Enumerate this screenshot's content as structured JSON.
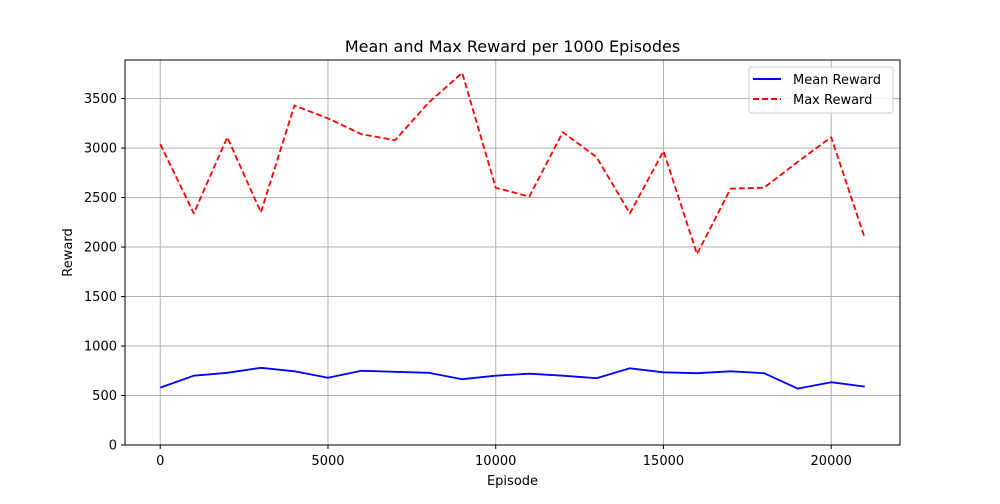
{
  "chart_data": {
    "type": "line",
    "title": "Mean and Max Reward per 1000 Episodes",
    "xlabel": "Episode",
    "ylabel": "Reward",
    "xlim": [
      -1050,
      22050
    ],
    "ylim": [
      0,
      3890
    ],
    "x_ticks": [
      0,
      5000,
      10000,
      15000,
      20000
    ],
    "y_ticks": [
      0,
      500,
      1000,
      1500,
      2000,
      2500,
      3000,
      3500
    ],
    "grid": true,
    "legend_position": "top-right",
    "x": [
      0,
      1000,
      2000,
      3000,
      4000,
      5000,
      6000,
      7000,
      8000,
      9000,
      10000,
      11000,
      12000,
      13000,
      14000,
      15000,
      16000,
      17000,
      18000,
      19000,
      20000,
      21000
    ],
    "series": [
      {
        "name": "Mean Reward",
        "color": "#0000ff",
        "style": "solid",
        "values": [
          580,
          700,
          730,
          780,
          745,
          680,
          750,
          740,
          730,
          665,
          700,
          720,
          700,
          675,
          775,
          735,
          725,
          745,
          725,
          570,
          635,
          590
        ]
      },
      {
        "name": "Max Reward",
        "color": "#ff0000",
        "style": "dashed",
        "values": [
          3040,
          2340,
          3110,
          2350,
          3430,
          3300,
          3140,
          3080,
          3460,
          3760,
          2600,
          2510,
          3160,
          2910,
          2340,
          2970,
          1930,
          2590,
          2600,
          2860,
          3110,
          2090
        ]
      }
    ]
  }
}
